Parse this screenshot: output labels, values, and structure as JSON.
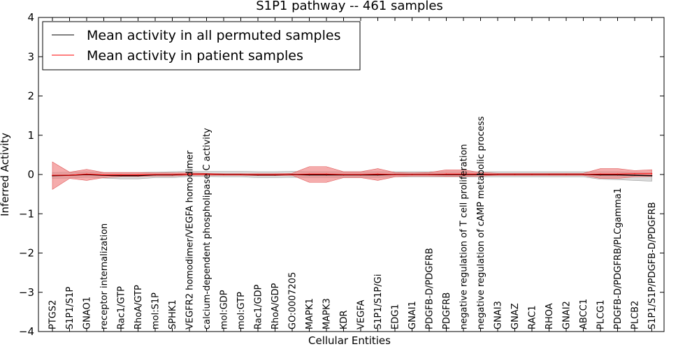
{
  "chart_data": {
    "type": "line",
    "title": "S1P1 pathway -- 461 samples",
    "xlabel": "Cellular Entities",
    "ylabel": "Inferred Activity",
    "ylim": [
      -4,
      4
    ],
    "yticks": [
      4,
      3,
      2,
      1,
      0,
      -1,
      -2,
      -3,
      -4
    ],
    "ytick_labels": [
      "4",
      "3",
      "2",
      "1",
      "0",
      "−1",
      "−2",
      "−3",
      "−4"
    ],
    "legend_position": "top-left",
    "categories": [
      "PTGS2",
      "S1P1/S1P",
      "GNAO1",
      "receptor internalization",
      "Rac1/GTP",
      "RhoA/GTP",
      "mol:S1P",
      "SPHK1",
      "VEGFR2 homodimer/VEGFA homodimer",
      "calcium-dependent phospholipase C activity",
      "mol:GDP",
      "mol:GTP",
      "Rac1/GDP",
      "RhoA/GDP",
      "GO:0007205",
      "MAPK1",
      "MAPK3",
      "KDR",
      "VEGFA",
      "S1P1/S1P/Gi",
      "EDG1",
      "GNAI1",
      "PDGFB-D/PDGFRB",
      "PDGFRB",
      "negative regulation of T cell proliferation",
      "negative regulation of cAMP metabolic process",
      "GNAI3",
      "GNAZ",
      "RAC1",
      "RHOA",
      "GNAI2",
      "ABCC1",
      "PLCG1",
      "PDGFB-D/PDGFRB/PLCgamma1",
      "PLCB2",
      "S1P1/S1P/PDGFB-D/PDGFRB"
    ],
    "series": [
      {
        "name": "Mean activity in all permuted samples",
        "color": "#000000",
        "values": [
          -0.03,
          -0.02,
          0.0,
          -0.02,
          -0.03,
          -0.03,
          -0.01,
          -0.01,
          0.01,
          0.01,
          0.0,
          0.0,
          -0.01,
          -0.01,
          0.0,
          -0.01,
          -0.01,
          -0.01,
          -0.01,
          -0.01,
          0.0,
          0.0,
          0.0,
          0.0,
          0.0,
          0.0,
          0.0,
          0.0,
          0.0,
          0.0,
          0.0,
          0.0,
          -0.01,
          -0.01,
          -0.02,
          -0.03
        ],
        "band_lower": [
          -0.1,
          -0.09,
          -0.07,
          -0.09,
          -0.11,
          -0.11,
          -0.08,
          -0.08,
          -0.05,
          -0.05,
          -0.06,
          -0.06,
          -0.08,
          -0.08,
          -0.07,
          -0.08,
          -0.08,
          -0.08,
          -0.08,
          -0.08,
          -0.06,
          -0.06,
          -0.06,
          -0.06,
          -0.06,
          -0.06,
          -0.06,
          -0.06,
          -0.06,
          -0.06,
          -0.06,
          -0.06,
          -0.12,
          -0.13,
          -0.15,
          -0.17
        ],
        "band_upper": [
          0.05,
          0.06,
          0.07,
          0.05,
          0.05,
          0.05,
          0.06,
          0.07,
          0.08,
          0.08,
          0.08,
          0.08,
          0.07,
          0.07,
          0.08,
          0.07,
          0.07,
          0.07,
          0.07,
          0.07,
          0.07,
          0.07,
          0.07,
          0.07,
          0.07,
          0.07,
          0.07,
          0.07,
          0.07,
          0.07,
          0.07,
          0.07,
          0.07,
          0.07,
          0.06,
          0.05
        ]
      },
      {
        "name": "Mean activity in patient samples",
        "color": "#ff0000",
        "values": [
          -0.02,
          -0.02,
          0.01,
          -0.01,
          -0.01,
          -0.01,
          0.0,
          0.0,
          0.01,
          0.01,
          0.0,
          0.0,
          0.0,
          0.0,
          0.0,
          0.01,
          0.01,
          0.0,
          0.0,
          0.01,
          0.0,
          0.0,
          0.0,
          0.01,
          0.01,
          0.01,
          0.0,
          0.0,
          0.0,
          0.0,
          0.0,
          0.0,
          0.01,
          0.01,
          0.02,
          0.02
        ],
        "band_lower": [
          -0.38,
          -0.1,
          -0.15,
          -0.08,
          -0.05,
          -0.05,
          -0.04,
          -0.04,
          -0.02,
          -0.02,
          -0.02,
          -0.02,
          -0.03,
          -0.03,
          -0.02,
          -0.2,
          -0.2,
          -0.08,
          -0.08,
          -0.15,
          -0.06,
          -0.04,
          -0.04,
          -0.05,
          -0.05,
          -0.04,
          -0.02,
          -0.02,
          -0.02,
          -0.02,
          -0.02,
          -0.02,
          -0.1,
          -0.1,
          -0.06,
          -0.05
        ],
        "band_upper": [
          0.32,
          0.06,
          0.13,
          0.05,
          0.05,
          0.05,
          0.04,
          0.04,
          0.04,
          0.03,
          0.02,
          0.02,
          0.02,
          0.02,
          0.03,
          0.2,
          0.2,
          0.07,
          0.07,
          0.15,
          0.05,
          0.04,
          0.05,
          0.12,
          0.12,
          0.05,
          0.03,
          0.03,
          0.03,
          0.03,
          0.03,
          0.03,
          0.15,
          0.15,
          0.1,
          0.12
        ]
      }
    ]
  }
}
